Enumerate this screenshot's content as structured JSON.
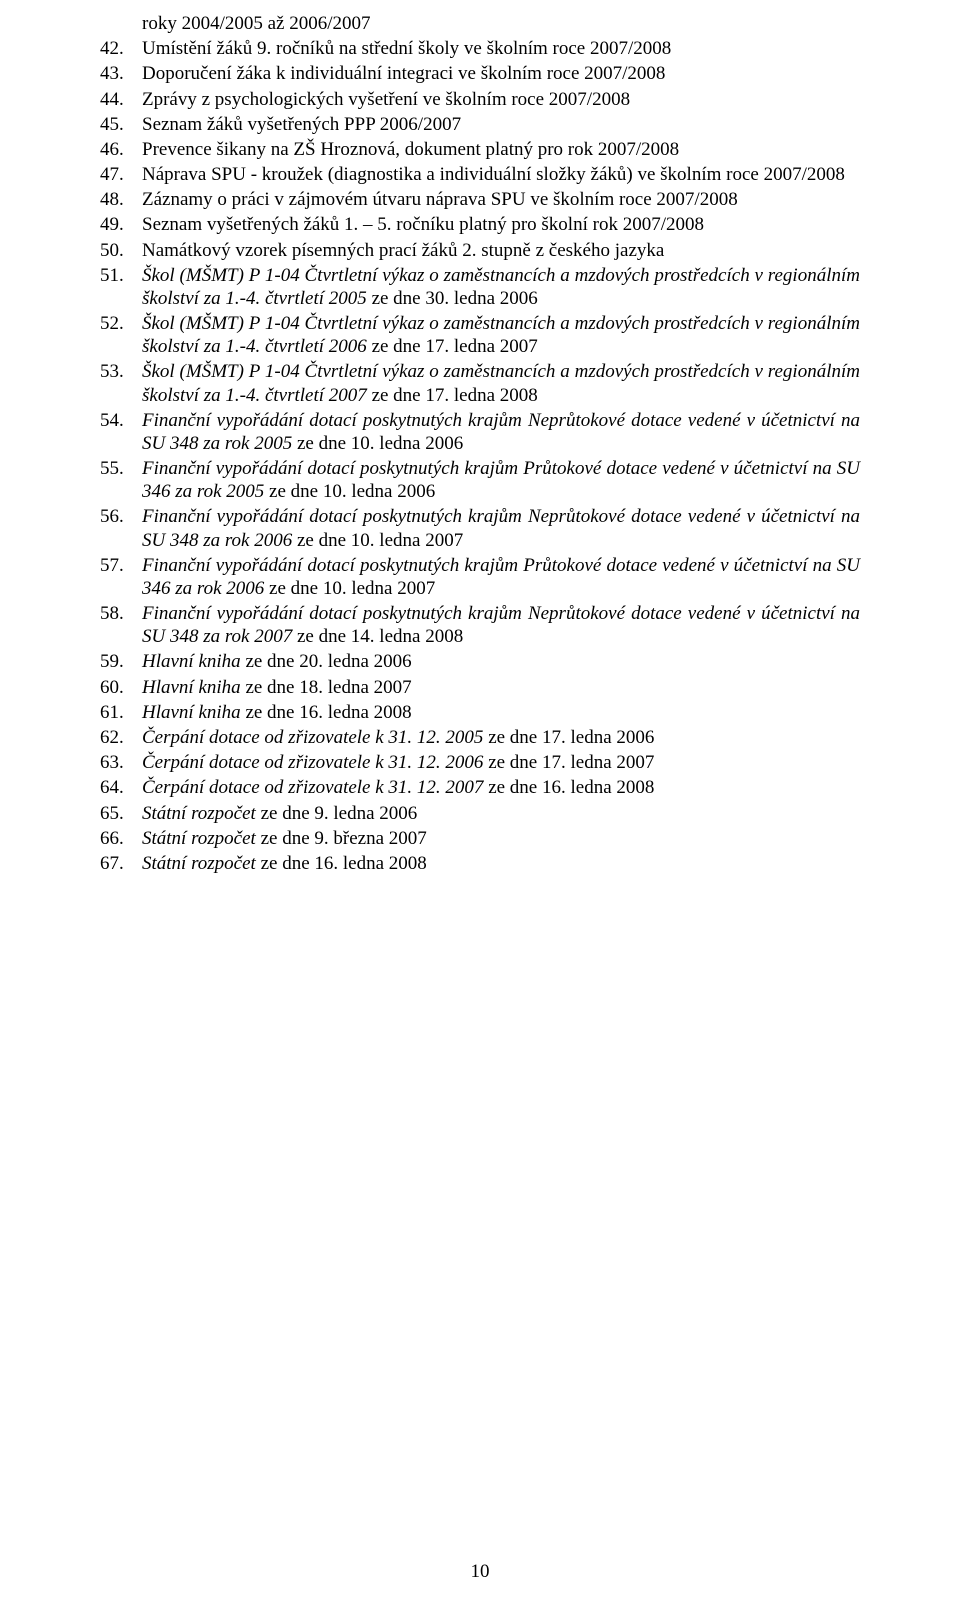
{
  "list_start": 42,
  "continuation_line": "roky 2004/2005 až 2006/2007",
  "items": [
    {
      "segments": [
        {
          "t": "Umístění žáků 9. ročníků na střední školy ve školním roce 2007/2008"
        }
      ]
    },
    {
      "segments": [
        {
          "t": "Doporučení žáka k individuální integraci ve školním roce 2007/2008"
        }
      ]
    },
    {
      "segments": [
        {
          "t": "Zprávy z psychologických vyšetření ve školním roce 2007/2008"
        }
      ]
    },
    {
      "segments": [
        {
          "t": "Seznam žáků vyšetřených PPP 2006/2007"
        }
      ]
    },
    {
      "segments": [
        {
          "t": "Prevence šikany na ZŠ Hroznová, dokument platný pro rok 2007/2008"
        }
      ]
    },
    {
      "segments": [
        {
          "t": "Náprava SPU - kroužek (diagnostika a individuální složky žáků) ve školním roce 2007/2008"
        }
      ]
    },
    {
      "segments": [
        {
          "t": "Záznamy o práci v zájmovém útvaru náprava SPU ve školním roce 2007/2008"
        }
      ]
    },
    {
      "segments": [
        {
          "t": "Seznam vyšetřených žáků 1. – 5. ročníku platný pro školní rok 2007/2008"
        }
      ]
    },
    {
      "segments": [
        {
          "t": "Namátkový vzorek písemných prací žáků 2. stupně z českého jazyka"
        }
      ]
    },
    {
      "segments": [
        {
          "t": "Škol (MŠMT) P 1-04 Čtvrtletní výkaz o zaměstnancích a mzdových prostředcích v regionálním školství za 1.-4. čtvrtletí 2005 ",
          "italic": true
        },
        {
          "t": "ze dne 30. ledna 2006"
        }
      ]
    },
    {
      "segments": [
        {
          "t": "Škol (MŠMT) P 1-04 Čtvrtletní výkaz o zaměstnancích a mzdových prostředcích v regionálním školství za 1.-4. čtvrtletí 2006 ",
          "italic": true
        },
        {
          "t": "ze dne 17. ledna 2007"
        }
      ]
    },
    {
      "segments": [
        {
          "t": "Škol (MŠMT) P 1-04 Čtvrtletní výkaz o zaměstnancích a mzdových prostředcích v regionálním školství za 1.-4. čtvrtletí 2007 ",
          "italic": true
        },
        {
          "t": "ze dne 17. ledna 2008"
        }
      ]
    },
    {
      "segments": [
        {
          "t": "Finanční vypořádání dotací poskytnutých krajům Neprůtokové dotace vedené v účetnictví na SU 348 za rok 2005 ",
          "italic": true
        },
        {
          "t": "ze dne 10. ledna 2006"
        }
      ]
    },
    {
      "segments": [
        {
          "t": "Finanční vypořádání dotací poskytnutých krajům Průtokové dotace vedené v účetnictví na SU 346 za rok 2005 ",
          "italic": true
        },
        {
          "t": "ze dne 10. ledna 2006"
        }
      ]
    },
    {
      "segments": [
        {
          "t": "Finanční vypořádání dotací poskytnutých krajům Neprůtokové dotace vedené v účetnictví na SU 348 za rok 2006 ",
          "italic": true
        },
        {
          "t": "ze dne 10. ledna 2007"
        }
      ]
    },
    {
      "segments": [
        {
          "t": "Finanční vypořádání dotací poskytnutých krajům Průtokové dotace vedené v účetnictví na SU 346 za rok 2006 ",
          "italic": true
        },
        {
          "t": "ze dne 10. ledna 2007"
        }
      ]
    },
    {
      "segments": [
        {
          "t": "Finanční vypořádání dotací poskytnutých krajům Neprůtokové dotace vedené v účetnictví na SU 348 za rok 2007 ",
          "italic": true
        },
        {
          "t": "ze dne 14. ledna 2008"
        }
      ]
    },
    {
      "segments": [
        {
          "t": "Hlavní kniha ",
          "italic": true
        },
        {
          "t": "ze  dne 20. ledna 2006"
        }
      ]
    },
    {
      "segments": [
        {
          "t": "Hlavní kniha ",
          "italic": true
        },
        {
          "t": "ze dne 18. ledna 2007"
        }
      ]
    },
    {
      "segments": [
        {
          "t": "Hlavní kniha ",
          "italic": true
        },
        {
          "t": "ze dne 16. ledna 2008"
        }
      ]
    },
    {
      "segments": [
        {
          "t": "Čerpání dotace od zřizovatele k 31. 12. 2005 ",
          "italic": true
        },
        {
          "t": "ze dne 17. ledna 2006"
        }
      ]
    },
    {
      "segments": [
        {
          "t": "Čerpání dotace od zřizovatele k 31. 12. 2006 ",
          "italic": true
        },
        {
          "t": "ze dne 17. ledna 2007"
        }
      ]
    },
    {
      "segments": [
        {
          "t": "Čerpání dotace od zřizovatele k 31. 12. 2007 ",
          "italic": true
        },
        {
          "t": "ze dne 16. ledna 2008"
        }
      ]
    },
    {
      "segments": [
        {
          "t": "Státní rozpočet ",
          "italic": true
        },
        {
          "t": "ze dne 9. ledna 2006"
        }
      ]
    },
    {
      "segments": [
        {
          "t": "Státní rozpočet ",
          "italic": true
        },
        {
          "t": "ze dne 9. března 2007"
        }
      ]
    },
    {
      "segments": [
        {
          "t": "Státní rozpočet ",
          "italic": true
        },
        {
          "t": "ze dne 16. ledna 2008"
        }
      ]
    }
  ],
  "page_number": "10"
}
